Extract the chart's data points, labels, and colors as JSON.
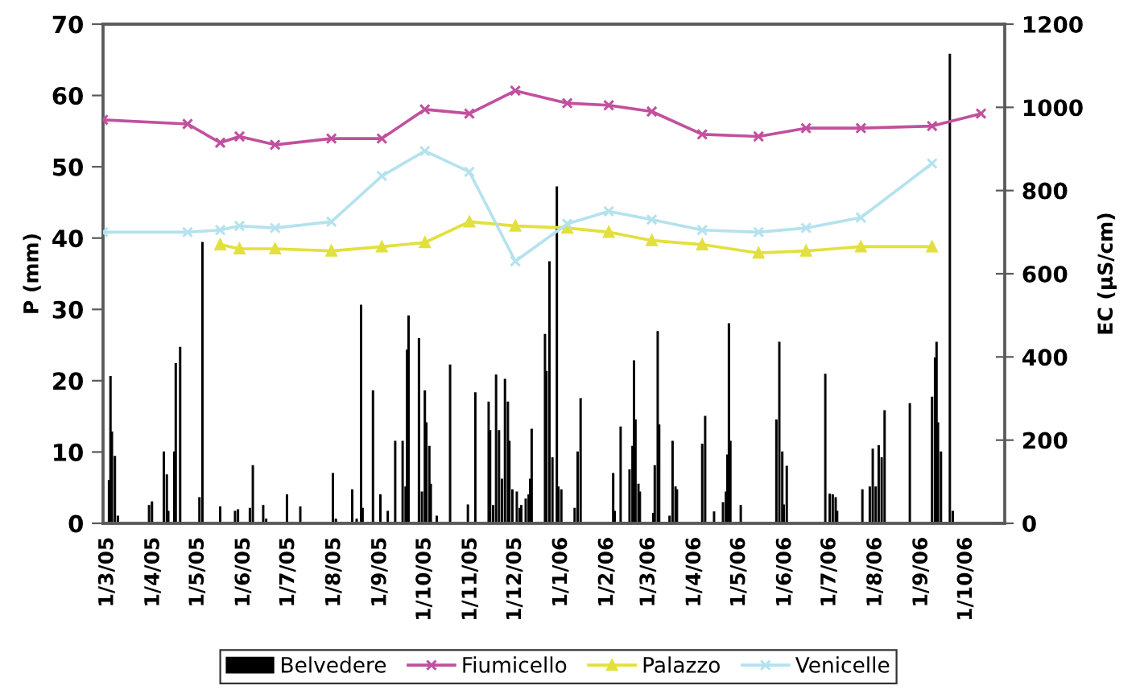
{
  "chart_data": {
    "type": "bar",
    "ylabel": "P (mm)",
    "y2label": "EC (µS/cm)",
    "xlim": [
      "2005-02-26",
      "2006-10-27"
    ],
    "xticks": [
      {
        "value": "2005-03-01",
        "label": "1/3/05"
      },
      {
        "value": "2005-04-01",
        "label": "1/4/05"
      },
      {
        "value": "2005-05-01",
        "label": "1/5/05"
      },
      {
        "value": "2005-06-01",
        "label": "1/6/05"
      },
      {
        "value": "2005-07-01",
        "label": "1/7/05"
      },
      {
        "value": "2005-08-01",
        "label": "1/8/05"
      },
      {
        "value": "2005-09-01",
        "label": "1/9/05"
      },
      {
        "value": "2005-10-01",
        "label": "1/10/05"
      },
      {
        "value": "2005-11-01",
        "label": "1/11/05"
      },
      {
        "value": "2005-12-01",
        "label": "1/12/05"
      },
      {
        "value": "2006-01-01",
        "label": "1/1/06"
      },
      {
        "value": "2006-02-01",
        "label": "1/2/06"
      },
      {
        "value": "2006-03-01",
        "label": "1/3/06"
      },
      {
        "value": "2006-04-01",
        "label": "1/4/06"
      },
      {
        "value": "2006-05-01",
        "label": "1/5/06"
      },
      {
        "value": "2006-06-01",
        "label": "1/6/06"
      },
      {
        "value": "2006-07-01",
        "label": "1/7/06"
      },
      {
        "value": "2006-08-01",
        "label": "1/8/06"
      },
      {
        "value": "2006-09-01",
        "label": "1/9/06"
      },
      {
        "value": "2006-10-01",
        "label": "1/10/06"
      }
    ],
    "ylim": [
      0,
      70
    ],
    "yticks": [
      0,
      10,
      20,
      30,
      40,
      50,
      60,
      70
    ],
    "y2lim": [
      0,
      1200
    ],
    "y2ticks": [
      0,
      200,
      400,
      600,
      800,
      1000,
      1200
    ],
    "grid": false,
    "legend": "bottom",
    "series": [
      {
        "name": "Belvedere",
        "color": "#000000",
        "x": [
          "2005-03-02",
          "2005-03-03",
          "2005-03-04",
          "2005-03-06",
          "2005-03-08",
          "2005-03-29",
          "2005-03-31",
          "2005-04-08",
          "2005-04-10",
          "2005-04-11",
          "2005-04-15",
          "2005-04-16",
          "2005-04-19",
          "2005-05-02",
          "2005-05-04",
          "2005-05-16",
          "2005-05-26",
          "2005-05-28",
          "2005-06-05",
          "2005-06-07",
          "2005-06-14",
          "2005-06-16",
          "2005-06-30",
          "2005-07-09",
          "2005-07-31",
          "2005-08-02",
          "2005-08-13",
          "2005-08-16",
          "2005-08-19",
          "2005-08-20",
          "2005-08-27",
          "2005-09-01",
          "2005-09-06",
          "2005-09-11",
          "2005-09-16",
          "2005-09-18",
          "2005-09-19",
          "2005-09-20",
          "2005-09-27",
          "2005-09-29",
          "2005-10-01",
          "2005-10-02",
          "2005-10-04",
          "2005-10-05",
          "2005-10-09",
          "2005-10-18",
          "2005-10-30",
          "2005-11-04",
          "2005-11-13",
          "2005-11-14",
          "2005-11-16",
          "2005-11-18",
          "2005-11-20",
          "2005-11-22",
          "2005-11-24",
          "2005-11-26",
          "2005-11-27",
          "2005-11-29",
          "2005-12-02",
          "2005-12-04",
          "2005-12-05",
          "2005-12-08",
          "2005-12-10",
          "2005-12-11",
          "2005-12-12",
          "2005-12-21",
          "2005-12-22",
          "2005-12-24",
          "2005-12-26",
          "2005-12-29",
          "2005-12-30",
          "2006-01-01",
          "2006-01-10",
          "2006-01-12",
          "2006-01-14",
          "2006-02-05",
          "2006-02-06",
          "2006-02-10",
          "2006-02-16",
          "2006-02-18",
          "2006-02-19",
          "2006-02-20",
          "2006-02-22",
          "2006-02-23",
          "2006-03-04",
          "2006-03-05",
          "2006-03-07",
          "2006-03-08",
          "2006-03-15",
          "2006-03-17",
          "2006-03-19",
          "2006-03-20",
          "2006-04-06",
          "2006-04-08",
          "2006-04-14",
          "2006-04-20",
          "2006-04-22",
          "2006-04-23",
          "2006-04-24",
          "2006-04-25",
          "2006-05-02",
          "2006-05-26",
          "2006-05-28",
          "2006-05-30",
          "2006-05-31",
          "2006-06-02",
          "2006-06-28",
          "2006-07-01",
          "2006-07-03",
          "2006-07-05",
          "2006-07-06",
          "2006-07-23",
          "2006-07-28",
          "2006-07-30",
          "2006-08-01",
          "2006-08-03",
          "2006-08-05",
          "2006-08-07",
          "2006-08-24",
          "2006-09-08",
          "2006-09-10",
          "2006-09-11",
          "2006-09-12",
          "2006-09-14",
          "2006-09-20",
          "2006-09-22"
        ],
        "values": [
          6.0,
          20.6,
          12.8,
          9.4,
          1.0,
          2.5,
          3.0,
          10.0,
          6.8,
          1.7,
          10.0,
          22.4,
          24.7,
          3.6,
          39.4,
          2.3,
          1.7,
          1.9,
          2.1,
          8.1,
          2.5,
          0.6,
          4.0,
          2.3,
          7.0,
          0.6,
          4.7,
          0.6,
          30.6,
          2.1,
          18.6,
          4.0,
          1.7,
          11.5,
          11.5,
          5.1,
          24.3,
          29.1,
          25.9,
          4.4,
          18.6,
          14.1,
          10.8,
          5.5,
          1.0,
          22.2,
          2.6,
          18.3,
          17.0,
          13.0,
          2.5,
          20.8,
          13.0,
          6.2,
          20.2,
          17.0,
          11.5,
          4.7,
          4.4,
          2.1,
          2.5,
          3.4,
          4.0,
          6.2,
          13.2,
          26.5,
          21.3,
          36.7,
          9.2,
          47.2,
          5.1,
          4.7,
          2.1,
          10.0,
          17.5,
          7.0,
          1.7,
          13.5,
          7.5,
          10.8,
          22.8,
          14.5,
          5.5,
          4.4,
          1.4,
          8.1,
          26.9,
          13.8,
          1.0,
          11.5,
          5.1,
          4.7,
          11.1,
          15.0,
          1.6,
          2.9,
          4.4,
          9.6,
          28.0,
          11.5,
          2.5,
          14.5,
          25.4,
          10.0,
          2.6,
          8.0,
          20.9,
          4.1,
          4.0,
          3.6,
          1.7,
          4.7,
          5.1,
          10.4,
          5.1,
          10.9,
          9.2,
          15.8,
          16.8,
          17.7,
          23.2,
          25.4,
          14.1,
          10.0,
          65.8,
          1.7
        ]
      },
      {
        "name": "Fiumicello",
        "type": "line",
        "axis": "y2",
        "color": "#c2509e",
        "marker": "cross",
        "line_style": "solid",
        "x": [
          "2005-02-26",
          "2005-04-24",
          "2005-05-16",
          "2005-05-29",
          "2005-06-22",
          "2005-07-30",
          "2005-09-02",
          "2005-10-01",
          "2005-10-31",
          "2005-12-01",
          "2006-01-05",
          "2006-02-02",
          "2006-03-03",
          "2006-04-06",
          "2006-05-14",
          "2006-06-15",
          "2006-07-22",
          "2006-09-08",
          "2006-10-11"
        ],
        "values": [
          970,
          960,
          915,
          930,
          910,
          925,
          925,
          995,
          985,
          1040,
          1010,
          1005,
          990,
          935,
          930,
          950,
          950,
          955,
          985
        ]
      },
      {
        "name": "Palazzo",
        "type": "line",
        "axis": "y2",
        "color": "#e2e03c",
        "marker": "triangle",
        "line_style": "solid",
        "x": [
          "2005-05-16",
          "2005-05-29",
          "2005-06-22",
          "2005-07-30",
          "2005-09-02",
          "2005-10-01",
          "2005-10-31",
          "2005-12-01",
          "2006-01-05",
          "2006-02-02",
          "2006-03-03",
          "2006-04-06",
          "2006-05-14",
          "2006-06-15",
          "2006-07-22",
          "2006-09-08"
        ],
        "values": [
          670,
          660,
          660,
          655,
          665,
          675,
          725,
          715,
          710,
          700,
          680,
          670,
          650,
          655,
          665,
          665
        ]
      },
      {
        "name": "Venicelle",
        "type": "line",
        "axis": "y2",
        "color": "#b4e2ee",
        "marker": "cross",
        "line_style": "solid",
        "x": [
          "2005-02-26",
          "2005-04-24",
          "2005-05-16",
          "2005-05-29",
          "2005-06-22",
          "2005-07-30",
          "2005-09-02",
          "2005-10-01",
          "2005-10-31",
          "2005-12-01",
          "2006-01-05",
          "2006-02-02",
          "2006-03-03",
          "2006-04-06",
          "2006-05-14",
          "2006-06-15",
          "2006-07-22",
          "2006-09-08"
        ],
        "values": [
          700,
          700,
          705,
          715,
          710,
          725,
          835,
          895,
          845,
          630,
          720,
          750,
          730,
          705,
          700,
          710,
          735,
          865
        ]
      }
    ]
  }
}
